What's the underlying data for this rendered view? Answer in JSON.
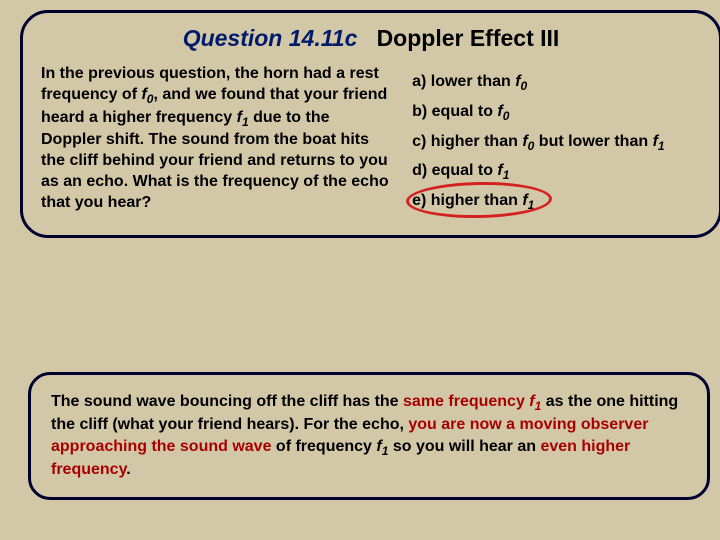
{
  "title": {
    "question_label": "Question 14.11c",
    "topic": "Doppler Effect III"
  },
  "prompt": {
    "p1": "In the previous question, the horn had a rest frequency of ",
    "f0": "f",
    "f0sub": "0",
    "p2": ", and we found that your friend heard a higher frequency ",
    "f1": "f",
    "f1sub": "1",
    "p3": " due to the Doppler shift.  The sound from the boat hits the cliff behind your friend and returns to you as an echo.  What is the frequency of the echo that you hear?"
  },
  "choices": {
    "a_pre": "a)  lower than ",
    "b_pre": "b)  equal to ",
    "c_pre": "c)  higher than ",
    "c_mid": " but lower than ",
    "d_pre": "d)  equal to ",
    "e_pre": "e)  higher than ",
    "f0": "f",
    "f0s": "0",
    "f1": "f",
    "f1s": "1"
  },
  "explain": {
    "t1": "The sound wave bouncing off the cliff has the ",
    "h1": "same frequency ",
    "h1f": "f",
    "h1s": "1",
    "t2": " as the one hitting the cliff (what your friend hears).  For the echo, ",
    "h2": "you are now a moving observer approaching the sound wave",
    "t3": " of frequency ",
    "t3f": "f",
    "t3s": "1",
    "t4": " so you will hear an ",
    "h3": "even higher frequency",
    "t5": "."
  },
  "styling": {
    "background_color": "#d2c8a8",
    "box_border_color": "#000030",
    "title_q_color": "#001a6a",
    "highlight_color": "#a80000",
    "ring_color": "#d42020",
    "font_family": "Arial",
    "title_fontsize": 23,
    "body_fontsize": 16,
    "correct_choice": "e"
  }
}
